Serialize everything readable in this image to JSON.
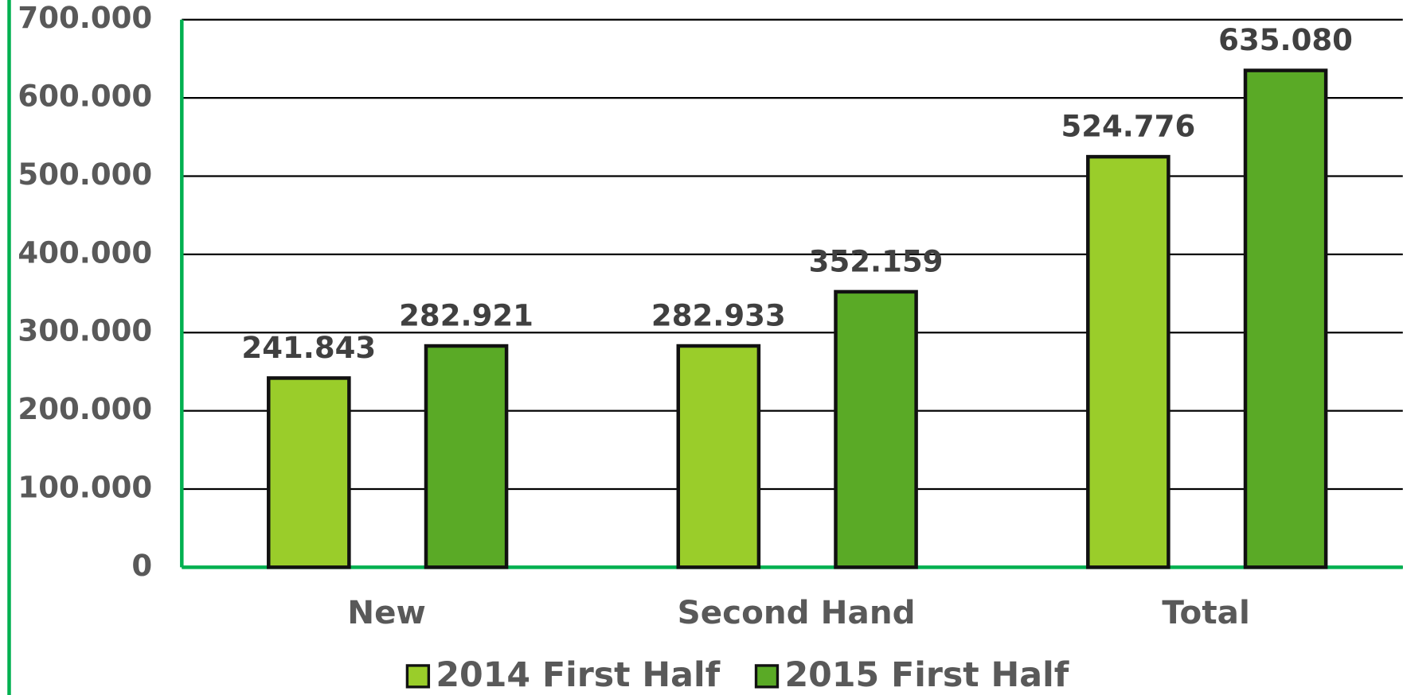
{
  "chart_data": {
    "type": "bar",
    "categories": [
      "New",
      "Second Hand",
      "Total"
    ],
    "series": [
      {
        "name": "2014 First Half",
        "color": "#9acd2a",
        "values": [
          241843,
          282933,
          524776
        ],
        "value_labels": [
          "241.843",
          "282.933",
          "524.776"
        ]
      },
      {
        "name": "2015 First Half",
        "color": "#5aaa26",
        "values": [
          282921,
          352159,
          635080
        ],
        "value_labels": [
          "282.921",
          "352.159",
          "635.080"
        ]
      }
    ],
    "ylim": [
      0,
      700000
    ],
    "yticks": [
      0,
      {
        "value": 100000,
        "label": "100.000"
      },
      {
        "value": 200000,
        "label": "200.000"
      },
      {
        "value": 300000,
        "label": "300.000"
      },
      {
        "value": 400000,
        "label": "400.000"
      },
      {
        "value": 500000,
        "label": "500.000"
      },
      {
        "value": 600000,
        "label": "600.000"
      },
      {
        "value": 700000,
        "label": "700.000"
      }
    ],
    "grid": true,
    "legend": "bottom"
  }
}
